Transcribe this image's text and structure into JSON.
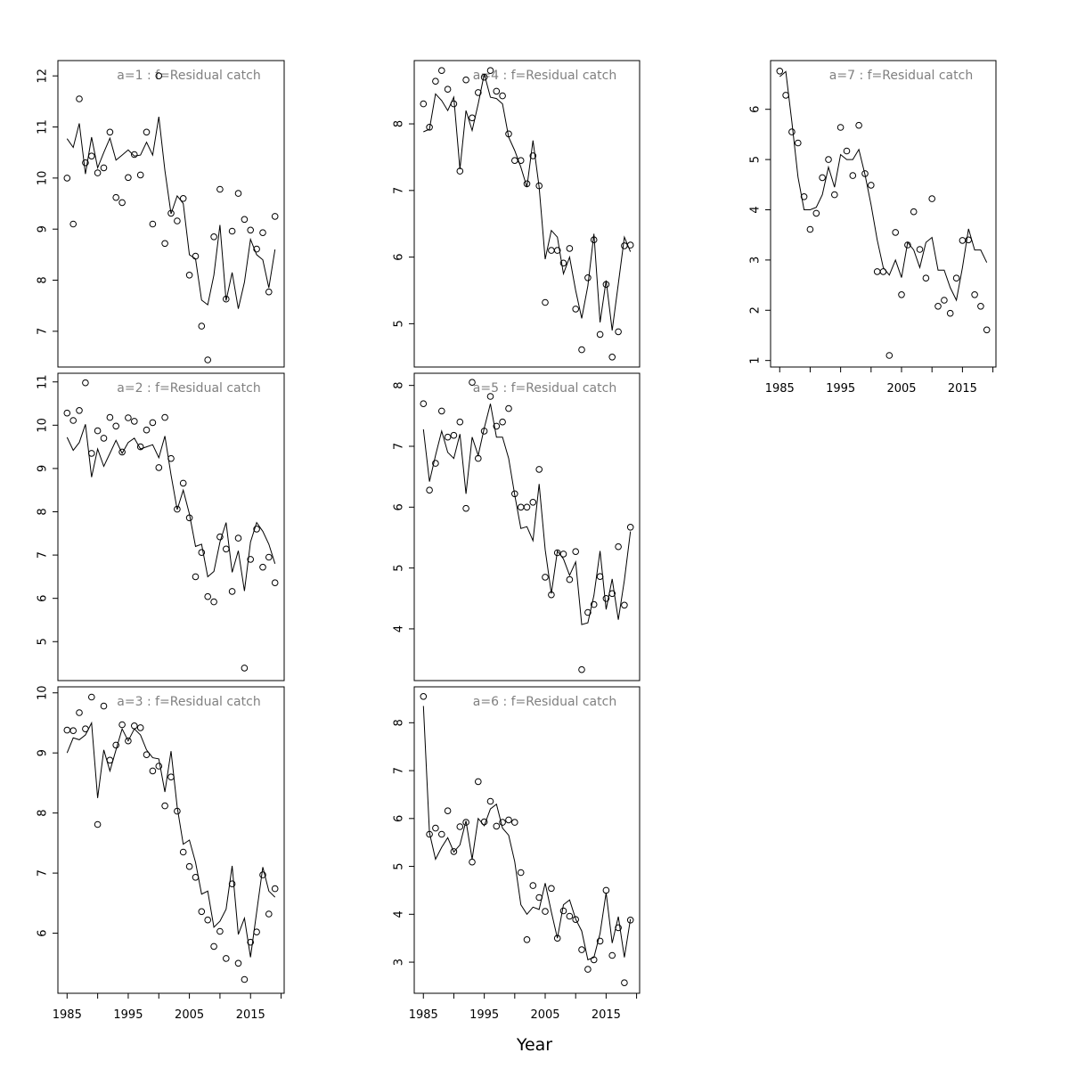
{
  "xlabel": "Year",
  "chart_data": [
    {
      "type": "line",
      "title": "a=1  :  f=Residual catch",
      "x_start": 1985,
      "x_end": 2019,
      "xlim": [
        1983.5,
        2020.5
      ],
      "xticks": [
        1985,
        1995,
        2005,
        2015
      ],
      "ylim": [
        6.3,
        12.3
      ],
      "yticks": [
        7,
        8,
        9,
        10,
        11,
        12
      ],
      "observed": [
        10.0,
        9.1,
        11.55,
        10.3,
        10.43,
        10.1,
        10.2,
        10.9,
        9.62,
        9.52,
        10.01,
        10.46,
        10.06,
        10.9,
        9.1,
        12.0,
        8.72,
        9.31,
        9.16,
        9.6,
        8.1,
        8.47,
        7.1,
        6.44,
        8.85,
        9.78,
        7.63,
        8.96,
        9.7,
        9.19,
        8.98,
        8.61,
        8.93,
        7.77,
        9.25
      ],
      "fitted": [
        10.77,
        10.6,
        11.07,
        10.08,
        10.8,
        10.2,
        10.5,
        10.78,
        10.35,
        10.45,
        10.55,
        10.43,
        10.45,
        10.7,
        10.45,
        11.2,
        10.15,
        9.3,
        9.65,
        9.5,
        8.5,
        8.42,
        7.61,
        7.52,
        8.1,
        9.08,
        7.6,
        8.15,
        7.44,
        7.96,
        8.8,
        8.5,
        8.4,
        7.85,
        8.6
      ]
    },
    {
      "type": "line",
      "title": "a=2  :  f=Residual catch",
      "x_start": 1985,
      "x_end": 2019,
      "xlim": [
        1983.5,
        2020.5
      ],
      "xticks": [
        1985,
        1995,
        2005,
        2015
      ],
      "ylim": [
        4.1,
        11.2
      ],
      "yticks": [
        5,
        6,
        7,
        8,
        9,
        10,
        11
      ],
      "observed": [
        10.28,
        10.11,
        10.34,
        10.98,
        9.35,
        9.87,
        9.7,
        10.18,
        9.98,
        9.38,
        10.17,
        10.09,
        9.5,
        9.89,
        10.06,
        9.02,
        10.18,
        9.23,
        8.06,
        8.66,
        7.86,
        6.5,
        7.06,
        6.04,
        5.92,
        7.42,
        7.14,
        6.16,
        7.39,
        4.39,
        6.9,
        7.6,
        6.72,
        6.95,
        6.36
      ],
      "fitted": [
        9.72,
        9.42,
        9.6,
        10.02,
        8.8,
        9.45,
        9.05,
        9.35,
        9.65,
        9.35,
        9.6,
        9.7,
        9.45,
        9.5,
        9.55,
        9.25,
        9.75,
        8.85,
        8.05,
        8.5,
        7.95,
        7.2,
        7.25,
        6.5,
        6.62,
        7.3,
        7.75,
        6.6,
        7.1,
        6.17,
        7.3,
        7.75,
        7.55,
        7.25,
        6.8
      ]
    },
    {
      "type": "line",
      "title": "a=3  :  f=Residual catch",
      "x_start": 1985,
      "x_end": 2019,
      "xlim": [
        1983.5,
        2020.5
      ],
      "xticks": [
        1985,
        1995,
        2005,
        2015
      ],
      "ylim": [
        5.0,
        10.1
      ],
      "yticks": [
        6,
        7,
        8,
        9,
        10
      ],
      "observed": [
        9.38,
        9.37,
        9.67,
        9.4,
        9.93,
        7.81,
        9.78,
        8.88,
        9.13,
        9.47,
        9.2,
        9.45,
        9.42,
        8.97,
        8.7,
        8.78,
        8.12,
        8.6,
        8.03,
        7.35,
        7.11,
        6.93,
        6.36,
        6.22,
        5.78,
        6.03,
        5.58,
        6.82,
        5.5,
        5.23,
        5.85,
        6.02,
        6.97,
        6.32,
        6.74
      ],
      "fitted": [
        9.0,
        9.25,
        9.22,
        9.3,
        9.5,
        8.25,
        9.05,
        8.7,
        9.05,
        9.4,
        9.2,
        9.4,
        9.3,
        9.05,
        8.92,
        8.9,
        8.35,
        9.03,
        8.1,
        7.48,
        7.55,
        7.18,
        6.65,
        6.7,
        6.1,
        6.2,
        6.4,
        7.12,
        5.98,
        6.25,
        5.6,
        6.35,
        7.1,
        6.7,
        6.6
      ]
    },
    {
      "type": "line",
      "title": "a=4  :  f=Residual catch",
      "x_start": 1985,
      "x_end": 2019,
      "xlim": [
        1983.5,
        2020.5
      ],
      "xticks": [
        1985,
        1995,
        2005,
        2015
      ],
      "ylim": [
        4.35,
        8.95
      ],
      "yticks": [
        5,
        6,
        7,
        8
      ],
      "observed": [
        8.3,
        7.95,
        8.64,
        8.8,
        8.52,
        8.3,
        7.29,
        8.66,
        8.09,
        8.47,
        8.7,
        8.8,
        8.49,
        8.42,
        7.85,
        7.45,
        7.45,
        7.1,
        7.52,
        7.07,
        5.32,
        6.1,
        6.1,
        5.91,
        6.13,
        5.22,
        4.61,
        5.69,
        6.26,
        4.84,
        5.59,
        4.5,
        4.88,
        6.17,
        6.18
      ],
      "fitted": [
        7.88,
        7.92,
        8.45,
        8.35,
        8.2,
        8.4,
        7.32,
        8.2,
        7.9,
        8.3,
        8.75,
        8.4,
        8.38,
        8.3,
        7.8,
        7.6,
        7.35,
        7.05,
        7.75,
        7.05,
        5.97,
        6.4,
        6.3,
        5.75,
        6.0,
        5.5,
        5.08,
        5.57,
        6.35,
        5.02,
        5.65,
        4.9,
        5.6,
        6.3,
        6.08
      ]
    },
    {
      "type": "line",
      "title": "a=5  :  f=Residual catch",
      "x_start": 1985,
      "x_end": 2019,
      "xlim": [
        1983.5,
        2020.5
      ],
      "xticks": [
        1985,
        1995,
        2005,
        2015
      ],
      "ylim": [
        3.15,
        8.2
      ],
      "yticks": [
        4,
        5,
        6,
        7,
        8
      ],
      "observed": [
        7.7,
        6.28,
        6.72,
        7.58,
        7.15,
        7.18,
        7.4,
        5.98,
        8.05,
        6.8,
        7.25,
        7.82,
        7.33,
        7.4,
        7.62,
        6.22,
        6.0,
        6.0,
        6.08,
        6.62,
        4.85,
        4.56,
        5.25,
        5.23,
        4.81,
        5.27,
        3.33,
        4.27,
        4.4,
        4.86,
        4.5,
        4.58,
        5.35,
        4.39,
        5.67
      ],
      "fitted": [
        7.28,
        6.42,
        6.85,
        7.25,
        6.9,
        6.8,
        7.2,
        6.22,
        7.15,
        6.85,
        7.3,
        7.7,
        7.15,
        7.15,
        6.8,
        6.2,
        5.65,
        5.68,
        5.45,
        6.38,
        5.3,
        4.58,
        5.28,
        5.15,
        4.88,
        5.1,
        4.07,
        4.1,
        4.55,
        5.28,
        4.32,
        4.82,
        4.15,
        4.8,
        5.6
      ]
    },
    {
      "type": "line",
      "title": "a=6  :  f=Residual catch",
      "x_start": 1985,
      "x_end": 2019,
      "xlim": [
        1983.5,
        2020.5
      ],
      "xticks": [
        1985,
        1995,
        2005,
        2015
      ],
      "ylim": [
        2.35,
        8.75
      ],
      "yticks": [
        3,
        4,
        5,
        6,
        7,
        8
      ],
      "observed": [
        8.55,
        5.67,
        5.8,
        5.67,
        6.16,
        5.31,
        5.83,
        5.92,
        5.09,
        6.77,
        5.93,
        6.36,
        5.84,
        5.92,
        5.97,
        5.92,
        4.87,
        3.47,
        4.6,
        4.35,
        4.06,
        4.54,
        3.5,
        4.07,
        3.96,
        3.89,
        3.26,
        2.85,
        3.05,
        3.44,
        4.5,
        3.14,
        3.72,
        2.57,
        3.88
      ],
      "fitted": [
        8.35,
        5.7,
        5.15,
        5.4,
        5.6,
        5.3,
        5.45,
        5.95,
        5.15,
        6.0,
        5.85,
        6.2,
        6.3,
        5.8,
        5.65,
        5.1,
        4.2,
        4.0,
        4.15,
        4.1,
        4.65,
        4.05,
        3.5,
        4.2,
        4.3,
        3.9,
        3.65,
        3.05,
        3.1,
        3.6,
        4.45,
        3.4,
        3.95,
        3.1,
        3.9
      ]
    },
    {
      "type": "line",
      "title": "a=7  :  f=Residual catch",
      "x_start": 1985,
      "x_end": 2019,
      "xlim": [
        1983.5,
        2020.5
      ],
      "xticks": [
        1985,
        1995,
        2005,
        2015
      ],
      "ylim": [
        0.87,
        6.97
      ],
      "yticks": [
        1,
        2,
        3,
        4,
        5,
        6
      ],
      "observed": [
        6.76,
        6.28,
        5.55,
        5.33,
        4.26,
        3.61,
        3.93,
        4.64,
        5.0,
        4.3,
        5.64,
        5.17,
        4.68,
        5.68,
        4.72,
        4.49,
        2.77,
        2.77,
        1.1,
        3.55,
        2.31,
        3.3,
        3.96,
        3.21,
        2.64,
        4.22,
        2.08,
        2.2,
        1.94,
        2.64,
        3.39,
        3.4,
        2.31,
        2.08,
        1.61
      ],
      "fitted": [
        6.65,
        6.75,
        5.75,
        4.65,
        4.0,
        4.0,
        4.05,
        4.3,
        4.85,
        4.45,
        5.1,
        5.0,
        5.0,
        5.2,
        4.7,
        4.1,
        3.4,
        2.85,
        2.7,
        3.0,
        2.65,
        3.35,
        3.2,
        2.85,
        3.35,
        3.45,
        2.8,
        2.8,
        2.45,
        2.2,
        2.85,
        3.62,
        3.2,
        3.2,
        2.95
      ]
    }
  ]
}
